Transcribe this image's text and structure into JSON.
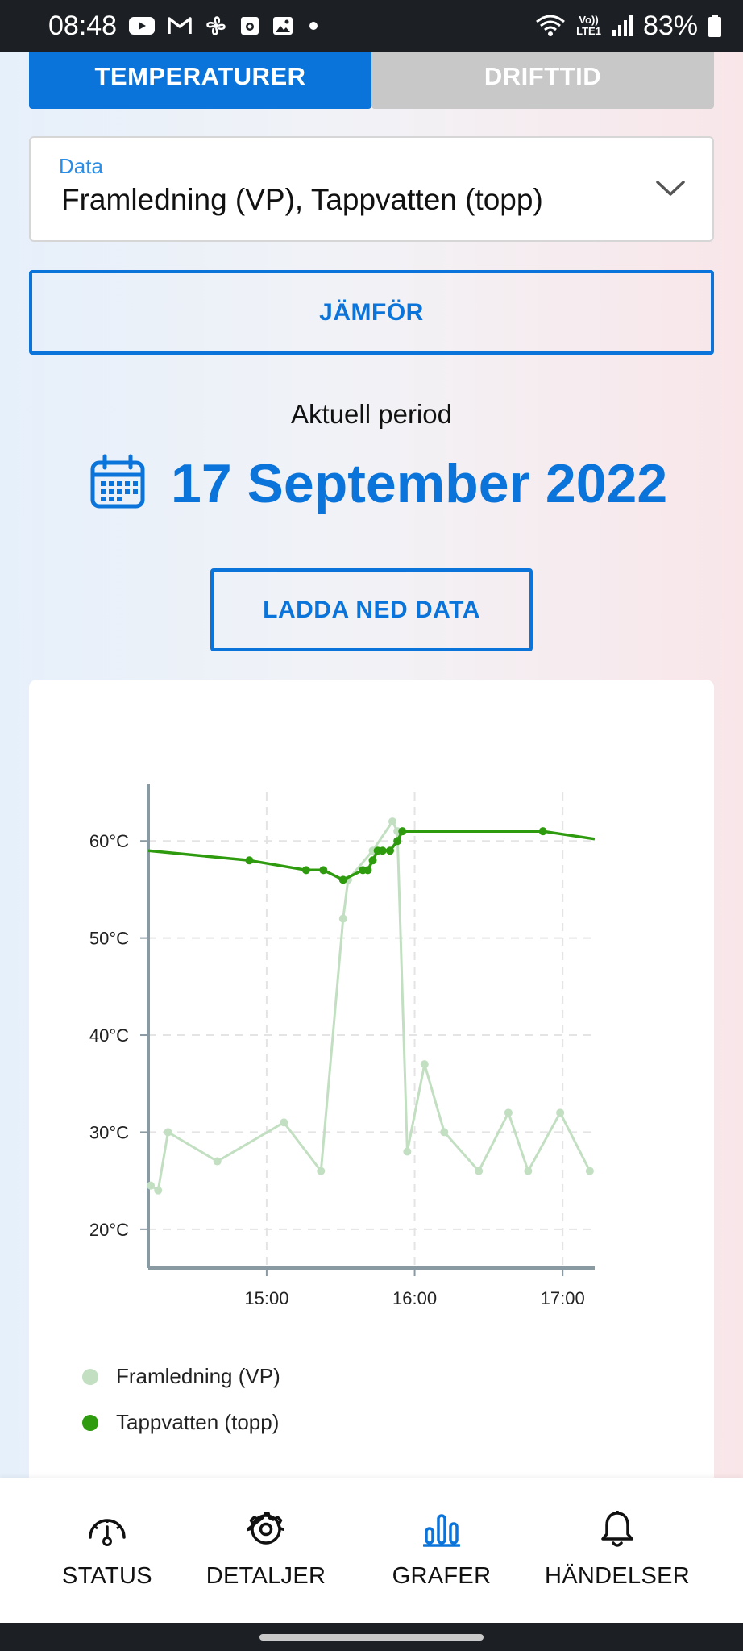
{
  "status_bar": {
    "time": "08:48",
    "battery": "83%",
    "network": "LTE1",
    "network_top": "Vo))",
    "icons": [
      "youtube-icon",
      "gmail-icon",
      "fan-icon",
      "camera-icon",
      "gallery-icon",
      "dot-icon",
      "wifi-icon",
      "signal-icon",
      "battery-icon"
    ]
  },
  "tabs": [
    {
      "label": "TEMPERATURER",
      "active": true
    },
    {
      "label": "DRIFTTID",
      "active": false
    }
  ],
  "data_select": {
    "label": "Data",
    "value": "Framledning (VP), Tappvatten (topp)"
  },
  "compare_button": "JÄMFÖR",
  "period": {
    "label": "Aktuell period",
    "date": "17 September 2022"
  },
  "download_button": "LADDA NED DATA",
  "colors": {
    "accent": "#0a74da",
    "series_framledning": "#c2dfc2",
    "series_tappvatten": "#2e9a0e"
  },
  "chart_data": {
    "type": "line",
    "xlabel": "",
    "ylabel": "",
    "xlim": [
      "14:12",
      "17:13"
    ],
    "ylim": [
      16,
      65
    ],
    "xticks": [
      "15:00",
      "16:00",
      "17:00"
    ],
    "yticks": [
      "20°C",
      "30°C",
      "40°C",
      "50°C",
      "60°C"
    ],
    "grid": true,
    "legend_position": "bottom",
    "series": [
      {
        "name": "Framledning (VP)",
        "color": "#c2dfc2",
        "x": [
          "14:13",
          "14:16",
          "14:20",
          "14:40",
          "15:07",
          "15:22",
          "15:31",
          "15:33",
          "15:43",
          "15:51",
          "15:53",
          "15:57",
          "16:04",
          "16:12",
          "16:26",
          "16:38",
          "16:46",
          "16:59",
          "17:11"
        ],
        "y": [
          24.5,
          24,
          30,
          27,
          31,
          26,
          52,
          56,
          59,
          62,
          61,
          28,
          37,
          30,
          26,
          32,
          26,
          32,
          26
        ]
      },
      {
        "name": "Tappvatten (topp)",
        "color": "#2e9a0e",
        "x": [
          "14:12",
          "14:53",
          "15:16",
          "15:23",
          "15:31",
          "15:39",
          "15:41",
          "15:43",
          "15:45",
          "15:47",
          "15:50",
          "15:53",
          "15:55",
          "16:52",
          "17:13"
        ],
        "y": [
          59,
          58,
          57,
          57,
          56,
          57,
          57,
          58,
          59,
          59,
          59,
          60,
          61,
          61,
          60.2
        ]
      }
    ]
  },
  "bottom_nav": [
    {
      "label": "STATUS",
      "icon": "gauge-icon",
      "active": false
    },
    {
      "label": "DETALJER",
      "icon": "gear-icon",
      "active": false
    },
    {
      "label": "GRAFER",
      "icon": "bar-chart-icon",
      "active": true
    },
    {
      "label": "HÄNDELSER",
      "icon": "bell-icon",
      "active": false
    }
  ]
}
